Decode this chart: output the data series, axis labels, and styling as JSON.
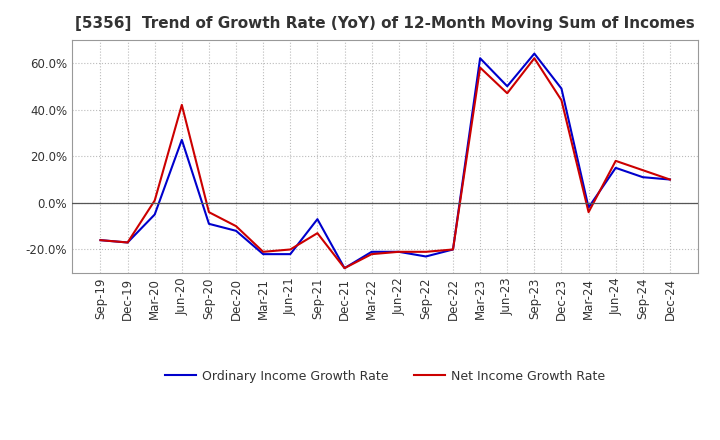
{
  "title": "[5356]  Trend of Growth Rate (YoY) of 12-Month Moving Sum of Incomes",
  "x_labels": [
    "Sep-19",
    "Dec-19",
    "Mar-20",
    "Jun-20",
    "Sep-20",
    "Dec-20",
    "Mar-21",
    "Jun-21",
    "Sep-21",
    "Dec-21",
    "Mar-22",
    "Jun-22",
    "Sep-22",
    "Dec-22",
    "Mar-23",
    "Jun-23",
    "Sep-23",
    "Dec-23",
    "Mar-24",
    "Jun-24",
    "Sep-24",
    "Dec-24"
  ],
  "ordinary_income": [
    -0.16,
    -0.17,
    -0.05,
    0.27,
    -0.09,
    -0.12,
    -0.22,
    -0.22,
    -0.07,
    -0.28,
    -0.21,
    -0.21,
    -0.23,
    -0.2,
    0.62,
    0.5,
    0.64,
    0.49,
    -0.02,
    0.15,
    0.11,
    0.1
  ],
  "net_income": [
    -0.16,
    -0.17,
    0.01,
    0.42,
    -0.04,
    -0.1,
    -0.21,
    -0.2,
    -0.13,
    -0.28,
    -0.22,
    -0.21,
    -0.21,
    -0.2,
    0.58,
    0.47,
    0.62,
    0.44,
    -0.04,
    0.18,
    0.14,
    0.1
  ],
  "ordinary_color": "#0000cc",
  "net_color": "#cc0000",
  "ylim": [
    -0.3,
    0.7
  ],
  "yticks": [
    -0.2,
    0.0,
    0.2,
    0.4,
    0.6
  ],
  "background_color": "#ffffff",
  "grid_color": "#bbbbbb",
  "text_color": "#333333",
  "legend_ordinary": "Ordinary Income Growth Rate",
  "legend_net": "Net Income Growth Rate",
  "title_fontsize": 11,
  "tick_fontsize": 8.5,
  "legend_fontsize": 9
}
